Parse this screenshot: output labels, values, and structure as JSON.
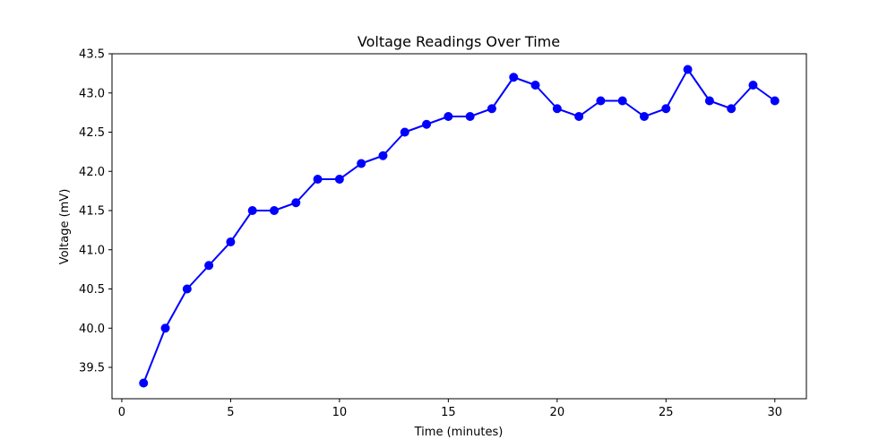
{
  "chart_data": {
    "type": "line",
    "title": "Voltage Readings Over Time",
    "xlabel": "Time (minutes)",
    "ylabel": "Voltage (mV)",
    "xlim": [
      -0.45,
      31.45
    ],
    "ylim": [
      39.1,
      43.5
    ],
    "x_ticks": [
      0,
      5,
      10,
      15,
      20,
      25,
      30
    ],
    "y_ticks": [
      39.5,
      40.0,
      40.5,
      41.0,
      41.5,
      42.0,
      42.5,
      43.0,
      43.5
    ],
    "grid": false,
    "series": [
      {
        "color": "#0000ff",
        "marker": "circle",
        "x": [
          1,
          2,
          3,
          4,
          5,
          6,
          7,
          8,
          9,
          10,
          11,
          12,
          13,
          14,
          15,
          16,
          17,
          18,
          19,
          20,
          21,
          22,
          23,
          24,
          25,
          26,
          27,
          28,
          29,
          30
        ],
        "y": [
          39.3,
          40.0,
          40.5,
          40.8,
          41.1,
          41.5,
          41.5,
          41.6,
          41.9,
          41.9,
          42.1,
          42.2,
          42.5,
          42.6,
          42.7,
          42.7,
          42.8,
          43.2,
          43.1,
          42.8,
          42.7,
          42.9,
          42.9,
          42.7,
          42.8,
          43.3,
          42.9,
          42.8,
          43.1,
          42.9
        ]
      }
    ]
  }
}
